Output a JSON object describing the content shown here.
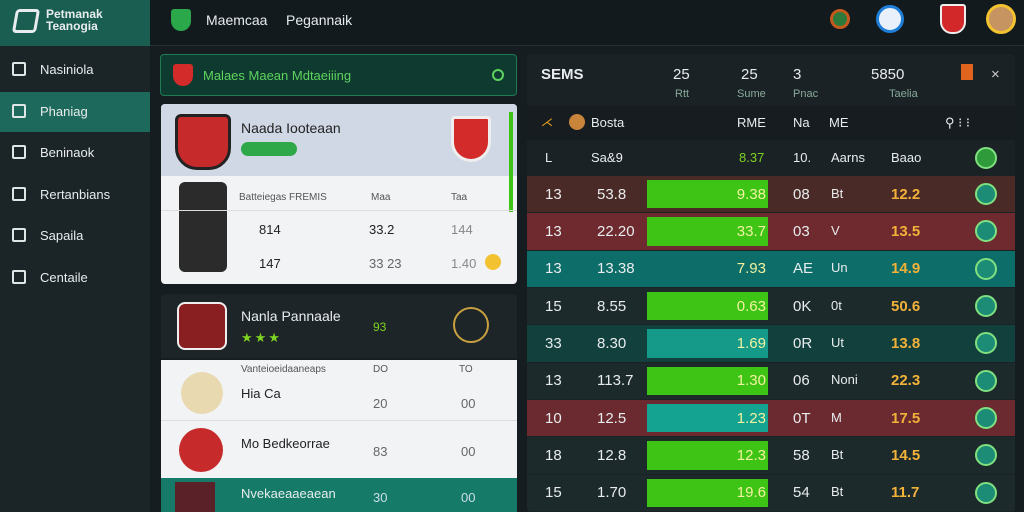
{
  "header": {
    "brand": [
      "Petmanak",
      "Teanogia"
    ],
    "tabs": [
      "Maemcaa",
      "Pegannaik"
    ]
  },
  "sidebar": {
    "items": [
      "Nasiniola",
      "Phaniag",
      "Beninaok",
      "Rertanbians",
      "Sapaila",
      "Centaile"
    ],
    "active": 1
  },
  "left_panel": {
    "title": "Malaes Maean Mdtaeiiing",
    "card1": {
      "name": "Naada Iooteaan",
      "stats_header": [
        "Batteiegas FREMIS",
        "Maa",
        "Taa"
      ],
      "rows": [
        [
          "814",
          "33.2",
          "144"
        ],
        [
          "147",
          "33 23",
          "1.40"
        ]
      ]
    },
    "card2": {
      "name": "Nanla Pannaale",
      "score": "93"
    },
    "list": {
      "header": [
        "Vanteioeidaaneaps",
        "DO",
        "TO"
      ],
      "items": [
        [
          "Hia Ca",
          "20",
          "00"
        ],
        [
          "Mo Bedkeorrae",
          "83",
          "00"
        ],
        [
          "Nvekaeaaeaean",
          "30",
          "00"
        ]
      ]
    }
  },
  "table": {
    "header": [
      "SEMS",
      "25",
      "25",
      "3",
      "5850"
    ],
    "subheader": [
      "Rtt",
      "Sume",
      "Pnac",
      "Taelia"
    ],
    "columns": [
      "Bosta",
      "RME",
      "Na",
      "ME"
    ],
    "first_row": [
      "L",
      "Sa&9",
      "8.37",
      "10.",
      "Aarns",
      "Baao"
    ],
    "rows": [
      {
        "cells": [
          "13",
          "53.8",
          "9.38",
          "08",
          "Bt",
          "12.2"
        ],
        "color": "#4a2a26",
        "bar": "#3ec414"
      },
      {
        "cells": [
          "13",
          "22.20",
          "33.7",
          "03",
          "V",
          "13.5"
        ],
        "color": "#6e2a2e",
        "bar": "#3ec414"
      },
      {
        "cells": [
          "13",
          "13.38",
          "7.93",
          "AE",
          "Un",
          "14.9"
        ],
        "color": "#0d6d68",
        "bar": "#0d6d68"
      },
      {
        "cells": [
          "15",
          "8.55",
          "0.63",
          "0K",
          "0t",
          "50.6"
        ],
        "color": "#1d2a2b",
        "bar": "#3ec414"
      },
      {
        "cells": [
          "33",
          "8.30",
          "1.69",
          "0R",
          "Ut",
          "13.8"
        ],
        "color": "#12403d",
        "bar": "#159a8a"
      },
      {
        "cells": [
          "13",
          "113.7",
          "1.30",
          "06",
          "Noni",
          "22.3"
        ],
        "color": "#1d2a2b",
        "bar": "#3ec414"
      },
      {
        "cells": [
          "10",
          "12.5",
          "1.23",
          "0T",
          "M",
          "17.5"
        ],
        "color": "#6a2a30",
        "bar": "#14a391"
      },
      {
        "cells": [
          "18",
          "12.8",
          "12.3",
          "58",
          "Bt",
          "14.5"
        ],
        "color": "#1d2a2b",
        "bar": "#3ec414"
      },
      {
        "cells": [
          "15",
          "1.70",
          "19.6",
          "54",
          "Bt",
          "11.7"
        ],
        "color": "#1d2a2b",
        "bar": "#3ec414"
      }
    ]
  }
}
